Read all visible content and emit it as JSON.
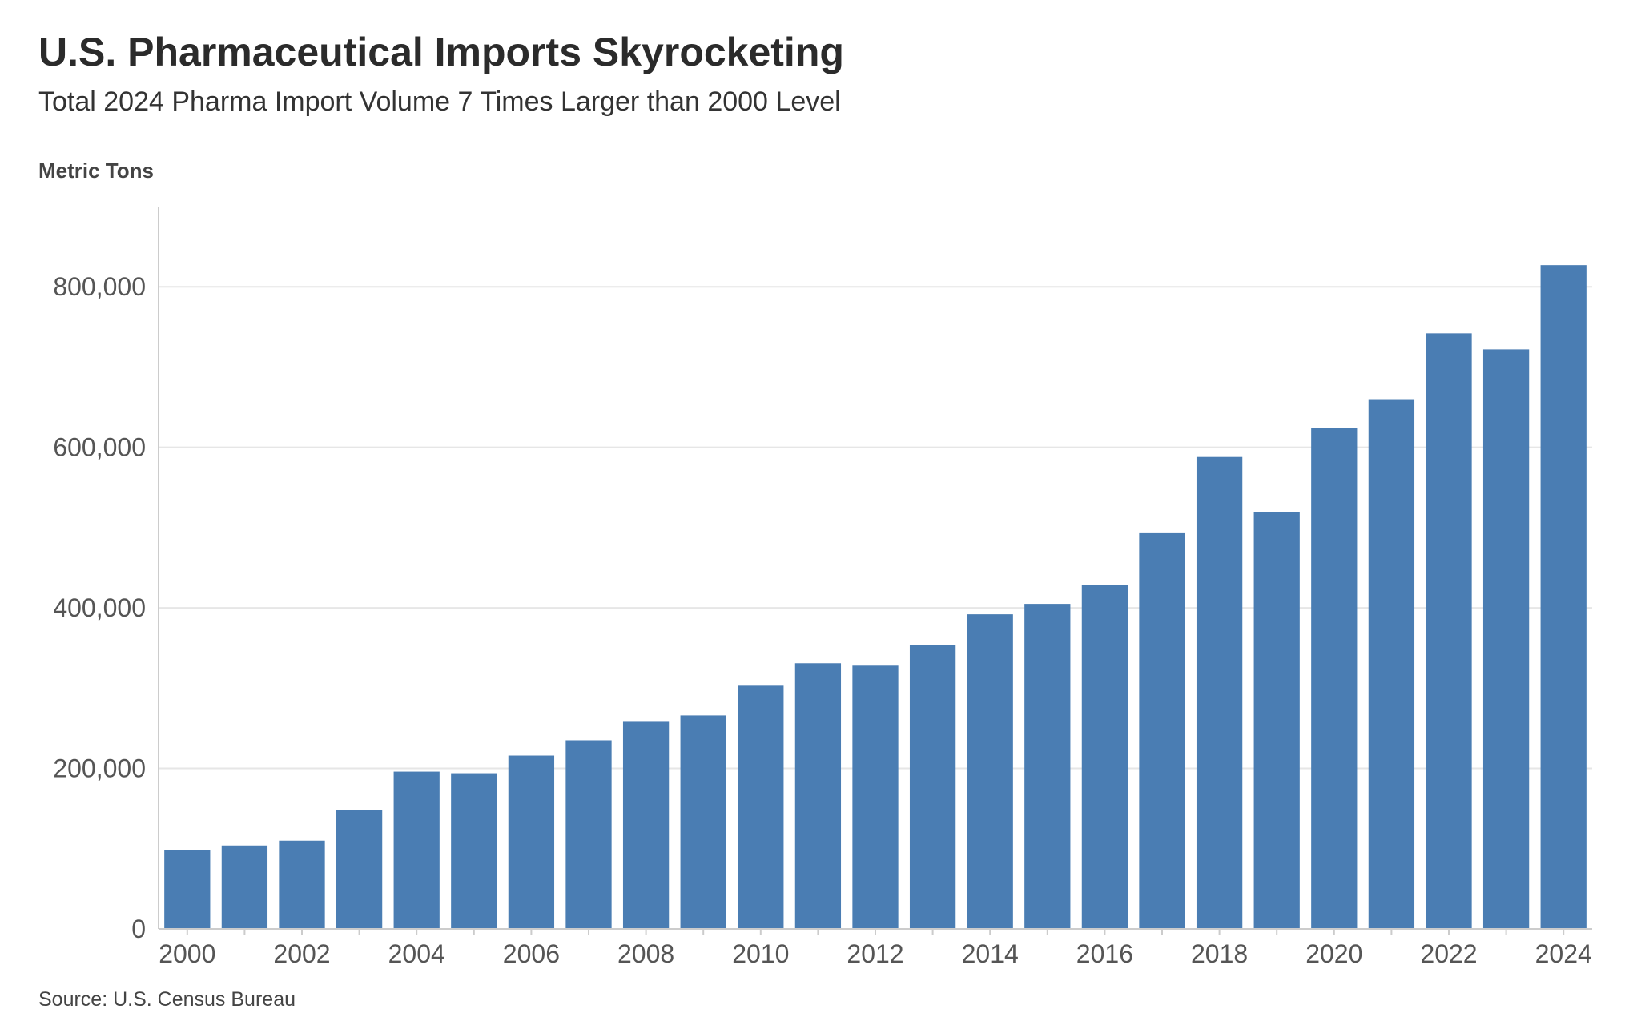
{
  "header": {
    "title": "U.S. Pharmaceutical Imports Skyrocketing",
    "subtitle": "Total 2024 Pharma Import Volume 7 Times Larger than 2000 Level",
    "unit_label": "Metric Tons"
  },
  "footer": {
    "source": "Source: U.S. Census Bureau"
  },
  "colors": {
    "bar": "#4a7db3",
    "grid": "#e6e6e6",
    "axis": "#cccccc"
  },
  "chart_data": {
    "type": "bar",
    "title": "U.S. Pharmaceutical Imports Skyrocketing",
    "subtitle": "Total 2024 Pharma Import Volume 7 Times Larger than 2000 Level",
    "ylabel": "Metric Tons",
    "xlabel": "",
    "ylim": [
      0,
      900000
    ],
    "yticks": [
      0,
      200000,
      400000,
      600000,
      800000
    ],
    "ytick_labels": [
      "0",
      "200,000",
      "400,000",
      "600,000",
      "800,000"
    ],
    "categories": [
      "2000",
      "2001",
      "2002",
      "2003",
      "2004",
      "2005",
      "2006",
      "2007",
      "2008",
      "2009",
      "2010",
      "2011",
      "2012",
      "2013",
      "2014",
      "2015",
      "2016",
      "2017",
      "2018",
      "2019",
      "2020",
      "2021",
      "2022",
      "2023",
      "2024"
    ],
    "xtick_labels": [
      "2000",
      "2002",
      "2004",
      "2006",
      "2008",
      "2010",
      "2012",
      "2014",
      "2016",
      "2018",
      "2020",
      "2022",
      "2024"
    ],
    "values": [
      98000,
      104000,
      110000,
      148000,
      196000,
      194000,
      216000,
      235000,
      258000,
      266000,
      303000,
      331000,
      328000,
      354000,
      392000,
      405000,
      429000,
      494000,
      588000,
      519000,
      624000,
      660000,
      742000,
      722000,
      827000
    ],
    "grid": true,
    "legend": "none"
  }
}
